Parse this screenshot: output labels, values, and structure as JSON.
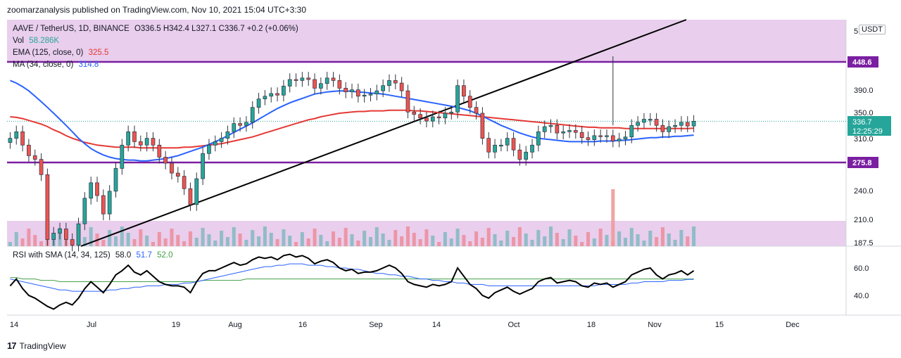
{
  "header": {
    "publisher": "zoomarzanalysis published on TradingView.com, Nov 10, 2021 15:04 UTC+3:30"
  },
  "legend": {
    "symbol": "AAVE / TetherUS, 1D, BINANCE",
    "ohlc": "O336.5 H342.4 L327.1 C336.7 +0.2 (+0.06%)",
    "vol_label": "Vol",
    "vol_value": "58.286K",
    "ema_label": "EMA (125, close, 0)",
    "ema_value": "325.5",
    "ma_label": "MA (34, close, 0)",
    "ma_value": "314.8",
    "rsi_label": "RSI with SMA (14, 34, 125)",
    "rsi_value": "58.0",
    "rsi_sma1": "51.7",
    "rsi_sma2": "52.0"
  },
  "currency": "USDT",
  "footer": {
    "brand": "TradingView"
  },
  "colors": {
    "up": "#26a69a",
    "down": "#ef5350",
    "ema": "#e53935",
    "ma": "#2962ff",
    "level": "#7b1fa2",
    "zone": "#e1bee7",
    "trend": "#000000",
    "rsi": "#000000",
    "rsi_sma1": "#2962ff",
    "rsi_sma2": "#43a047",
    "price_tag": "#26a69a",
    "alert_volume": "#ef9a9a"
  },
  "chart_data": {
    "type": "candlestick",
    "y_ticks": [
      "5",
      "448.6",
      "390.0",
      "350.0",
      "336.7",
      "310.0",
      "275.8",
      "240.0",
      "210.0",
      "187.5"
    ],
    "x_ticks": [
      "14",
      "Jul",
      "19",
      "Aug",
      "16",
      "Sep",
      "14",
      "Oct",
      "18",
      "Nov",
      "15",
      "Dec"
    ],
    "rsi_ticks": [
      "60.0",
      "40.0"
    ],
    "horizontal_levels": [
      448.6,
      275.8
    ],
    "resistance_zone": [
      448.6,
      520
    ],
    "trendline": [
      {
        "date": "2021-06-27",
        "price": 185
      },
      {
        "date": "2021-10-25",
        "price": 448.6
      }
    ],
    "last_price": "336.7",
    "countdown": "12:25:29",
    "volume_spike": {
      "date": "2021-10-26"
    },
    "closes": [
      310,
      320,
      300,
      285,
      280,
      260,
      190,
      196,
      200,
      190,
      185,
      205,
      232,
      250,
      235,
      215,
      240,
      268,
      300,
      320,
      305,
      300,
      310,
      300,
      283,
      275,
      262,
      258,
      243,
      225,
      255,
      288,
      300,
      305,
      310,
      320,
      333,
      330,
      335,
      360,
      375,
      380,
      385,
      382,
      399,
      412,
      410,
      415,
      412,
      395,
      404,
      415,
      410,
      395,
      388,
      392,
      380,
      382,
      384,
      390,
      400,
      410,
      405,
      390,
      352,
      348,
      342,
      337,
      344,
      342,
      350,
      352,
      400,
      380,
      360,
      350,
      310,
      290,
      300,
      300,
      310,
      293,
      280,
      290,
      300,
      320,
      328,
      330,
      318,
      320,
      322,
      319,
      311,
      308,
      314,
      313,
      314,
      306,
      309,
      312,
      330,
      335,
      340,
      340,
      330,
      320,
      328,
      330,
      335,
      329,
      336.7
    ],
    "ema_125": [
      344,
      343,
      341,
      338,
      335,
      332,
      328,
      323,
      319,
      314,
      310,
      307,
      304,
      302,
      300,
      299,
      298,
      297,
      297,
      297,
      297,
      296,
      296,
      296,
      296,
      296,
      296,
      296,
      297,
      297,
      298,
      299,
      300,
      301,
      302,
      304,
      306,
      308,
      310,
      312,
      315,
      318,
      321,
      324,
      327,
      330,
      333,
      336,
      339,
      341,
      344,
      346,
      348,
      350,
      351,
      352,
      353,
      353,
      354,
      354,
      354,
      355,
      355,
      355,
      355,
      354,
      354,
      353,
      352,
      351,
      350,
      349,
      348,
      347,
      346,
      345,
      344,
      343,
      342,
      341,
      340,
      339,
      338,
      337,
      336,
      335,
      334,
      333,
      332,
      331,
      330,
      329,
      328,
      327,
      327,
      326,
      326,
      326,
      326,
      325,
      325,
      325,
      325,
      325,
      325,
      325,
      325,
      325,
      325,
      325,
      325.5
    ],
    "ma_34": [
      410,
      405,
      398,
      390,
      380,
      370,
      360,
      350,
      340,
      330,
      320,
      310,
      302,
      295,
      290,
      286,
      283,
      281,
      280,
      279,
      279,
      278,
      278,
      279,
      280,
      281,
      283,
      285,
      288,
      291,
      294,
      297,
      301,
      305,
      309,
      314,
      319,
      324,
      329,
      334,
      340,
      346,
      352,
      358,
      363,
      368,
      372,
      376,
      380,
      384,
      386,
      388,
      389,
      390,
      390,
      389,
      388,
      387,
      386,
      385,
      384,
      382,
      380,
      378,
      376,
      374,
      372,
      370,
      368,
      366,
      364,
      362,
      360,
      357,
      354,
      350,
      345,
      340,
      335,
      330,
      326,
      322,
      318,
      315,
      312,
      310,
      309,
      308,
      307,
      306,
      305,
      305,
      305,
      305,
      305,
      306,
      306,
      306,
      307,
      307,
      308,
      309,
      310,
      311,
      311,
      312,
      312,
      313,
      313,
      314,
      314.8
    ],
    "rsi": [
      47,
      52,
      45,
      40,
      38,
      35,
      32,
      30,
      33,
      35,
      33,
      38,
      45,
      50,
      46,
      42,
      48,
      55,
      58,
      62,
      57,
      55,
      58,
      54,
      50,
      48,
      47,
      47,
      46,
      42,
      50,
      56,
      58,
      58,
      60,
      62,
      64,
      62,
      63,
      66,
      68,
      67,
      68,
      66,
      69,
      70,
      68,
      69,
      67,
      63,
      65,
      66,
      64,
      60,
      58,
      59,
      56,
      57,
      57,
      58,
      60,
      62,
      60,
      56,
      50,
      48,
      47,
      46,
      48,
      47,
      48,
      50,
      60,
      54,
      48,
      45,
      40,
      38,
      42,
      44,
      46,
      43,
      41,
      43,
      45,
      50,
      52,
      53,
      49,
      50,
      51,
      50,
      47,
      46,
      49,
      48,
      49,
      46,
      48,
      50,
      55,
      57,
      59,
      60,
      55,
      52,
      55,
      56,
      58,
      55,
      58
    ],
    "rsi_sma_34": [
      52,
      51,
      50,
      49,
      48,
      47,
      46,
      45,
      44,
      44,
      43,
      43,
      43,
      43,
      43,
      43,
      44,
      44,
      45,
      45,
      46,
      46,
      47,
      47,
      47,
      48,
      48,
      48,
      49,
      49,
      50,
      51,
      52,
      53,
      54,
      55,
      56,
      57,
      58,
      59,
      60,
      61,
      61,
      62,
      62,
      63,
      63,
      63,
      62,
      62,
      62,
      61,
      61,
      60,
      60,
      59,
      59,
      58,
      57,
      56,
      56,
      55,
      55,
      54,
      54,
      53,
      52,
      52,
      51,
      51,
      50,
      50,
      49,
      49,
      48,
      48,
      48,
      47,
      47,
      47,
      47,
      47,
      47,
      47,
      47,
      47,
      47,
      47,
      47,
      47,
      47,
      47,
      47,
      47,
      47,
      48,
      48,
      48,
      48,
      48,
      49,
      49,
      50,
      50,
      50,
      50,
      51,
      51,
      51,
      51.7,
      51.7
    ],
    "rsi_sma_125": [
      53,
      53,
      52,
      52,
      52,
      51,
      51,
      51,
      50,
      50,
      50,
      50,
      50,
      50,
      50,
      50,
      50,
      50,
      50,
      50,
      50,
      50,
      50,
      50,
      50,
      50,
      50,
      50,
      50,
      50,
      50,
      51,
      51,
      51,
      51,
      51,
      51,
      51,
      52,
      52,
      52,
      52,
      52,
      52,
      52,
      52,
      52,
      52,
      52,
      52,
      52,
      52,
      52,
      52,
      52,
      52,
      52,
      52,
      52,
      52,
      52,
      52,
      52,
      52,
      52,
      52,
      52,
      52,
      52,
      52,
      52,
      52,
      52,
      52,
      52,
      52,
      52,
      52,
      52,
      52,
      52,
      52,
      52,
      52,
      52,
      52,
      52,
      52,
      52,
      52,
      52,
      52,
      52,
      52,
      52,
      52,
      52,
      52,
      52,
      52,
      52,
      52,
      52,
      52,
      52,
      52,
      52,
      52,
      52,
      52,
      52
    ]
  }
}
